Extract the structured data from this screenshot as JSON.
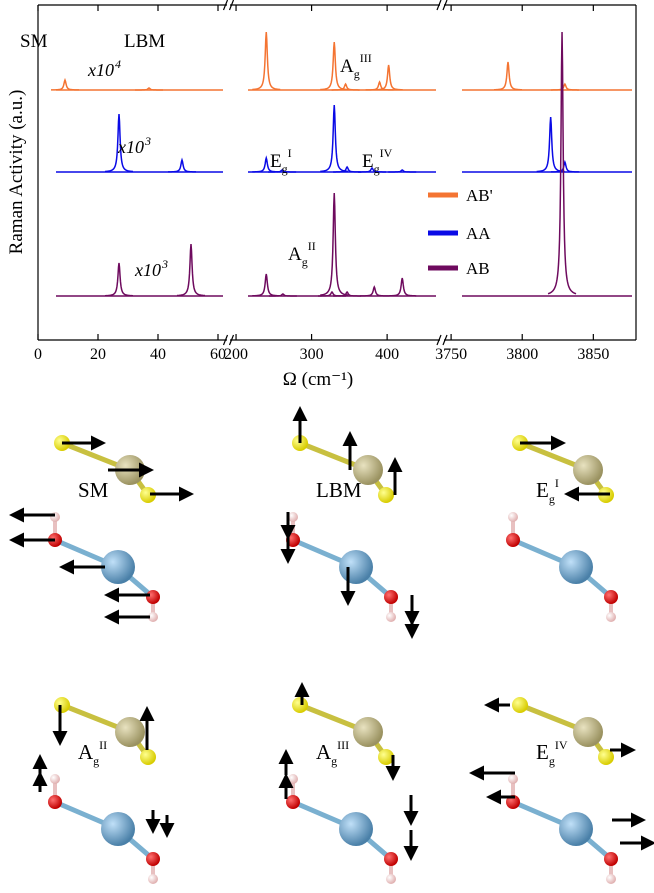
{
  "chart_data": {
    "type": "line",
    "ylabel": "Raman Activity (a.u.)",
    "xlabel": "Ω (cm⁻¹)",
    "ylim": [
      0,
      335
    ],
    "segments": [
      {
        "xlim": [
          0,
          63
        ],
        "xticks": [
          0,
          20,
          40,
          60
        ]
      },
      {
        "xlim": [
          192,
          470
        ],
        "xticks": [
          200,
          300,
          400
        ]
      },
      {
        "xlim": [
          3745,
          3880
        ],
        "xticks": [
          3750,
          3800,
          3850
        ]
      }
    ],
    "series": [
      {
        "name": "AB'",
        "color": "#f47432",
        "baseline": 250,
        "x": [
          9,
          37,
          240,
          330,
          345,
          390,
          402,
          3790,
          3830
        ],
        "values": [
          10,
          2,
          58,
          48,
          6,
          8,
          25,
          28,
          6
        ],
        "scale_label": {
          "base": "x10",
          "sup": "4"
        }
      },
      {
        "name": "AA",
        "color": "#0a0ae6",
        "baseline": 168,
        "x": [
          27,
          48,
          240,
          261,
          330,
          347,
          380,
          420,
          3820,
          3830
        ],
        "values": [
          58,
          12,
          14,
          2,
          67,
          5,
          4,
          2,
          55,
          10
        ],
        "scale_label": {
          "base": "x10",
          "sup": "3"
        }
      },
      {
        "name": "AB",
        "color": "#6e0a5e",
        "baseline": 44,
        "x": [
          27,
          51,
          240,
          262,
          327,
          330,
          347,
          383,
          420,
          3828
        ],
        "values": [
          33,
          52,
          22,
          2,
          4,
          103,
          4,
          9,
          18,
          264
        ],
        "scale_label": {
          "base": "x10",
          "sup": "3"
        }
      }
    ],
    "annotations": [
      {
        "base": "SM"
      },
      {
        "base": "LBM"
      },
      {
        "base": "A",
        "sub": "g",
        "sup": "III"
      },
      {
        "base": "E",
        "sub": "g",
        "sup": "I"
      },
      {
        "base": "E",
        "sub": "g",
        "sup": "IV"
      },
      {
        "base": "A",
        "sub": "g",
        "sup": "II"
      }
    ]
  },
  "mode_panels": [
    {
      "label": {
        "base": "SM"
      }
    },
    {
      "label": {
        "base": "LBM"
      }
    },
    {
      "label": {
        "base": "E",
        "sub": "g",
        "sup": "I"
      }
    },
    {
      "label": {
        "base": "A",
        "sub": "g",
        "sup": "II"
      }
    },
    {
      "label": {
        "base": "A",
        "sub": "g",
        "sup": "III"
      }
    },
    {
      "label": {
        "base": "E",
        "sub": "g",
        "sup": "IV"
      }
    }
  ]
}
